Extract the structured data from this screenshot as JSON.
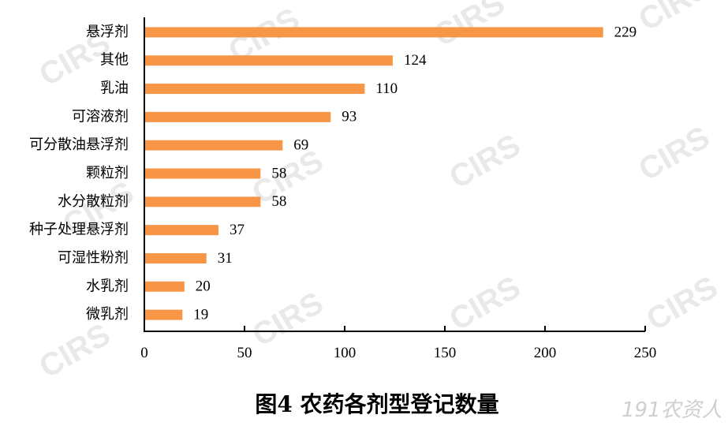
{
  "chart_data": {
    "type": "bar",
    "orientation": "horizontal",
    "title": "图4 农药各剂型登记数量",
    "categories": [
      "悬浮剂",
      "其他",
      "乳油",
      "可溶液剂",
      "可分散油悬浮剂",
      "颗粒剂",
      "水分散粒剂",
      "种子处理悬浮剂",
      "可湿性粉剂",
      "水乳剂",
      "微乳剂"
    ],
    "values": [
      229,
      124,
      110,
      93,
      69,
      58,
      58,
      37,
      31,
      20,
      19
    ],
    "xlim": [
      0,
      250
    ],
    "xticks": [
      "0",
      "50",
      "100",
      "150",
      "200",
      "250"
    ],
    "grid": false,
    "data_labels": true,
    "bar_color": "#F79646"
  },
  "watermark": {
    "text": "CIRS",
    "brand": "191农资人"
  }
}
